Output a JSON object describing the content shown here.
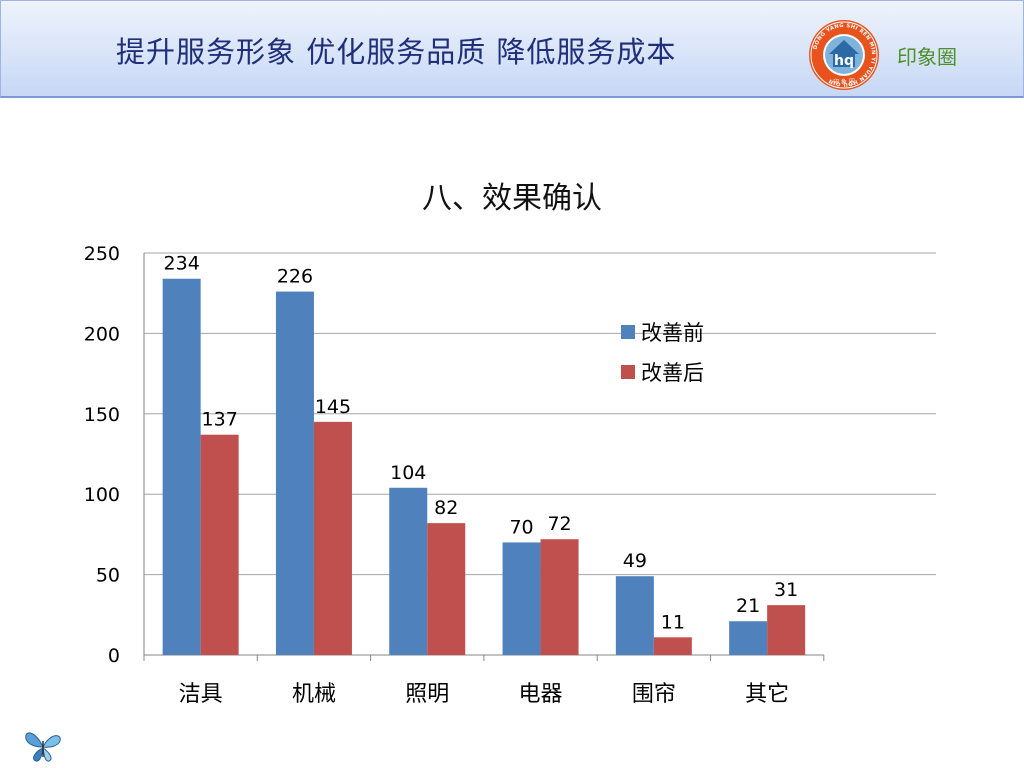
{
  "header": {
    "title": "提升服务形象  优化服务品质  降低服务成本",
    "brand": "印象圈"
  },
  "logo": {
    "ring_text": "DONG YANG SHI REN MIN YI YUAN HOU QIN",
    "center_text": "hq",
    "bottom_text": "印 象 圈"
  },
  "colors": {
    "header_title": "#1f2f7a",
    "brand_text": "#4d8f2a",
    "series_before": "#4f81bd",
    "series_after": "#c0504d"
  },
  "chart_data": {
    "type": "bar",
    "title": "八、效果确认",
    "categories": [
      "洁具",
      "机械",
      "照明",
      "电器",
      "围帘",
      "其它"
    ],
    "series": [
      {
        "name": "改善前",
        "values": [
          234,
          226,
          104,
          70,
          49,
          21
        ]
      },
      {
        "name": "改善后",
        "values": [
          137,
          145,
          82,
          72,
          11,
          31
        ]
      }
    ],
    "ylim": [
      0,
      250
    ],
    "yticks": [
      0,
      50,
      100,
      150,
      200,
      250
    ],
    "grid": true,
    "legend": "upper-right"
  }
}
